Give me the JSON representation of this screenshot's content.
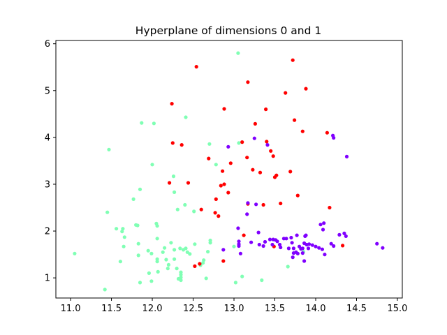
{
  "chart_data": {
    "type": "scatter",
    "title": "Hyperplane of dimensions 0 and 1",
    "xlabel": "",
    "ylabel": "",
    "xlim": [
      10.82,
      15.06
    ],
    "ylim": [
      0.57,
      6.07
    ],
    "x_ticks": [
      11.0,
      11.5,
      12.0,
      12.5,
      13.0,
      13.5,
      14.0,
      14.5,
      15.0
    ],
    "x_tick_labels": [
      "11.0",
      "11.5",
      "12.0",
      "12.5",
      "13.0",
      "13.5",
      "14.0",
      "14.5",
      "15.0"
    ],
    "y_ticks": [
      1,
      2,
      3,
      4,
      5,
      6
    ],
    "y_tick_labels": [
      "1",
      "2",
      "3",
      "4",
      "5",
      "6"
    ],
    "grid": false,
    "legend": "none",
    "series": [
      {
        "color": "#80ffb4",
        "points": [
          [
            11.05,
            1.52
          ],
          [
            11.42,
            0.75
          ],
          [
            11.45,
            2.4
          ],
          [
            11.47,
            3.74
          ],
          [
            11.56,
            2.05
          ],
          [
            11.61,
            1.35
          ],
          [
            11.63,
            1.99
          ],
          [
            11.64,
            2.05
          ],
          [
            11.66,
            1.87
          ],
          [
            11.65,
            1.67
          ],
          [
            11.77,
            2.68
          ],
          [
            11.8,
            2.13
          ],
          [
            11.82,
            2.12
          ],
          [
            11.83,
            1.73
          ],
          [
            11.83,
            1.48
          ],
          [
            11.85,
            2.89
          ],
          [
            11.87,
            4.31
          ],
          [
            11.85,
            0.9
          ],
          [
            11.95,
            1.58
          ],
          [
            11.96,
            1.1
          ],
          [
            11.99,
            1.52
          ],
          [
            11.99,
            0.93
          ],
          [
            12.0,
            3.42
          ],
          [
            12.02,
            4.3
          ],
          [
            12.05,
            2.16
          ],
          [
            12.06,
            2.11
          ],
          [
            12.06,
            1.4
          ],
          [
            12.06,
            1.35
          ],
          [
            12.07,
            1.13
          ],
          [
            12.06,
            1.84
          ],
          [
            12.13,
            1.55
          ],
          [
            12.15,
            1.64
          ],
          [
            12.17,
            1.39
          ],
          [
            12.19,
            1.2
          ],
          [
            12.2,
            1.28
          ],
          [
            12.23,
            1.75
          ],
          [
            12.26,
            3.17
          ],
          [
            12.27,
            1.6
          ],
          [
            12.27,
            2.83
          ],
          [
            12.27,
            1.4
          ],
          [
            12.3,
            1.2
          ],
          [
            12.31,
            2.46
          ],
          [
            12.32,
            0.98
          ],
          [
            12.34,
            1.63
          ],
          [
            12.35,
            1.12
          ],
          [
            12.35,
            1.07
          ],
          [
            12.35,
            1.01
          ],
          [
            12.35,
            0.95
          ],
          [
            12.38,
            1.6
          ],
          [
            12.4,
            2.56
          ],
          [
            12.41,
            4.43
          ],
          [
            12.41,
            1.63
          ],
          [
            12.43,
            1.55
          ],
          [
            12.46,
            1.51
          ],
          [
            12.51,
            2.42
          ],
          [
            12.52,
            1.72
          ],
          [
            12.59,
            1.27
          ],
          [
            12.62,
            1.32
          ],
          [
            12.63,
            1.38
          ],
          [
            12.66,
            0.99
          ],
          [
            12.68,
            1.56
          ],
          [
            12.7,
            3.86
          ],
          [
            12.71,
            1.8
          ],
          [
            12.71,
            1.75
          ],
          [
            12.78,
            3.42
          ],
          [
            13.0,
            1.67
          ],
          [
            13.02,
            0.9
          ],
          [
            13.05,
            5.8
          ],
          [
            13.06,
            3.88
          ],
          [
            13.1,
            1.03
          ],
          [
            13.34,
            0.95
          ],
          [
            13.66,
            1.24
          ],
          [
            13.85,
            1.56
          ]
        ]
      },
      {
        "color": "#ff0000",
        "points": [
          [
            12.21,
            3.03
          ],
          [
            12.24,
            4.72
          ],
          [
            12.25,
            3.88
          ],
          [
            12.36,
            3.84
          ],
          [
            12.44,
            3.03
          ],
          [
            12.52,
            1.25
          ],
          [
            12.54,
            5.51
          ],
          [
            12.58,
            1.3
          ],
          [
            12.6,
            2.46
          ],
          [
            12.69,
            3.55
          ],
          [
            12.77,
            2.39
          ],
          [
            12.78,
            2.68
          ],
          [
            12.81,
            2.32
          ],
          [
            12.84,
            2.97
          ],
          [
            12.86,
            3.28
          ],
          [
            12.87,
            1.36
          ],
          [
            12.88,
            4.61
          ],
          [
            12.88,
            3.0
          ],
          [
            12.93,
            2.82
          ],
          [
            12.96,
            3.45
          ],
          [
            13.1,
            3.9
          ],
          [
            13.12,
            1.91
          ],
          [
            13.16,
            3.57
          ],
          [
            13.17,
            2.58
          ],
          [
            13.17,
            5.18
          ],
          [
            13.23,
            3.31
          ],
          [
            13.26,
            4.29
          ],
          [
            13.32,
            3.25
          ],
          [
            13.36,
            2.56
          ],
          [
            13.39,
            4.6
          ],
          [
            13.4,
            3.91
          ],
          [
            13.45,
            3.71
          ],
          [
            13.48,
            3.6
          ],
          [
            13.5,
            3.15
          ],
          [
            13.52,
            3.19
          ],
          [
            13.57,
            2.59
          ],
          [
            13.63,
            4.95
          ],
          [
            13.69,
            3.27
          ],
          [
            13.72,
            5.65
          ],
          [
            13.74,
            4.37
          ],
          [
            13.78,
            2.76
          ],
          [
            13.84,
            4.13
          ],
          [
            13.88,
            5.04
          ],
          [
            14.14,
            4.1
          ],
          [
            14.17,
            2.5
          ],
          [
            14.33,
            1.69
          ],
          [
            13.49,
            1.67
          ]
        ]
      },
      {
        "color": "#8000ff",
        "points": [
          [
            12.87,
            1.6
          ],
          [
            12.93,
            3.8
          ],
          [
            13.05,
            2.06
          ],
          [
            13.06,
            1.78
          ],
          [
            13.06,
            1.72
          ],
          [
            13.06,
            1.68
          ],
          [
            13.08,
            1.52
          ],
          [
            13.16,
            2.36
          ],
          [
            13.17,
            2.6
          ],
          [
            13.21,
            1.76
          ],
          [
            13.25,
            3.98
          ],
          [
            13.27,
            2.57
          ],
          [
            13.3,
            1.97
          ],
          [
            13.31,
            1.71
          ],
          [
            13.36,
            1.68
          ],
          [
            13.38,
            1.77
          ],
          [
            13.41,
            3.84
          ],
          [
            13.44,
            1.82
          ],
          [
            13.47,
            1.71
          ],
          [
            13.48,
            1.82
          ],
          [
            13.51,
            1.81
          ],
          [
            13.53,
            1.78
          ],
          [
            13.56,
            1.71
          ],
          [
            13.57,
            1.65
          ],
          [
            13.61,
            1.84
          ],
          [
            13.64,
            1.84
          ],
          [
            13.67,
            1.63
          ],
          [
            13.7,
            1.86
          ],
          [
            13.71,
            1.75
          ],
          [
            13.72,
            1.44
          ],
          [
            13.73,
            1.53
          ],
          [
            13.73,
            1.63
          ],
          [
            13.76,
            1.55
          ],
          [
            13.77,
            1.91
          ],
          [
            13.78,
            1.52
          ],
          [
            13.8,
            1.67
          ],
          [
            13.82,
            1.62
          ],
          [
            13.84,
            1.63
          ],
          [
            13.86,
            1.36
          ],
          [
            13.86,
            1.74
          ],
          [
            13.87,
            1.89
          ],
          [
            13.88,
            1.91
          ],
          [
            13.89,
            1.71
          ],
          [
            13.91,
            1.63
          ],
          [
            13.92,
            1.72
          ],
          [
            13.96,
            1.7
          ],
          [
            14.0,
            1.67
          ],
          [
            14.04,
            1.64
          ],
          [
            14.06,
            2.14
          ],
          [
            14.08,
            1.61
          ],
          [
            14.09,
            2.03
          ],
          [
            14.1,
            2.17
          ],
          [
            14.11,
            1.5
          ],
          [
            14.19,
            1.73
          ],
          [
            14.21,
            4.04
          ],
          [
            14.22,
            3.99
          ],
          [
            14.22,
            1.68
          ],
          [
            14.29,
            1.92
          ],
          [
            14.35,
            1.95
          ],
          [
            14.37,
            1.89
          ],
          [
            14.38,
            3.59
          ],
          [
            14.75,
            1.73
          ],
          [
            14.82,
            1.64
          ],
          [
            13.84,
            1.53
          ]
        ]
      }
    ]
  }
}
